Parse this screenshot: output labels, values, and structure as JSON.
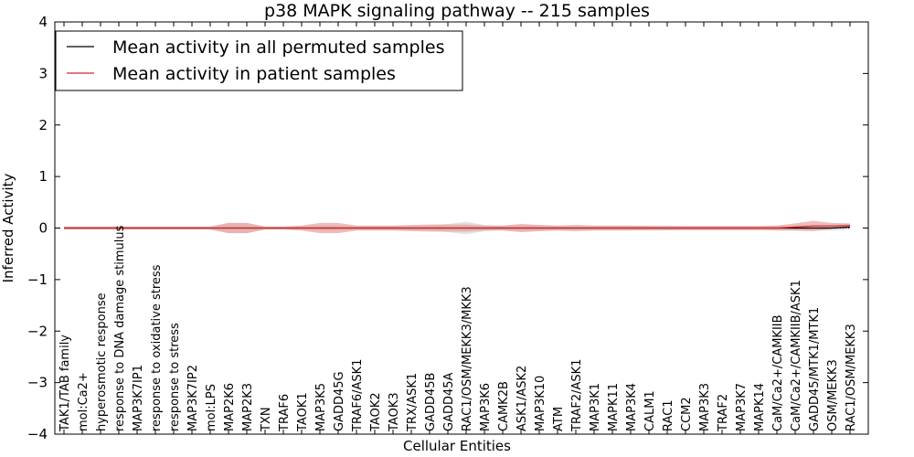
{
  "chart_data": {
    "type": "line",
    "title": "p38 MAPK signaling pathway -- 215 samples",
    "xlabel": "Cellular Entities",
    "ylabel": "Inferred Activity",
    "ylim": [
      -4,
      4
    ],
    "yticks": [
      "−4",
      "−3",
      "−2",
      "−1",
      "0",
      "1",
      "2",
      "3",
      "4"
    ],
    "categories": [
      "TAK1/TAB family",
      "mol:Ca2+",
      "hyperosmotic response",
      "response to DNA damage stimulus",
      "MAP3K7IP1",
      "response to oxidative stress",
      "response to stress",
      "MAP3K7IP2",
      "mol:LPS",
      "MAP2K6",
      "MAP2K3",
      "TXN",
      "TRAF6",
      "TAOK1",
      "MAP3K5",
      "GADD45G",
      "TRAF6/ASK1",
      "TAOK2",
      "TAOK3",
      "TRX/ASK1",
      "GADD45B",
      "GADD45A",
      "RAC1/OSM/MEKK3/MKK3",
      "MAP3K6",
      "CAMK2B",
      "ASK1/ASK2",
      "MAP3K10",
      "ATM",
      "TRAF2/ASK1",
      "MAP3K1",
      "MAPK11",
      "MAP3K4",
      "CALM1",
      "RAC1",
      "CCM2",
      "MAP3K3",
      "TRAF2",
      "MAP3K7",
      "MAPK14",
      "CaM/Ca2+/CAMKIIB",
      "CaM/Ca2+/CAMKIIB/ASK1",
      "GADD45/MTK1/MTK1",
      "OSM/MEKK3",
      "RAC1/OSM/MEKK3"
    ],
    "series": [
      {
        "name": "Mean activity in all permuted samples",
        "color": "#000000",
        "values": [
          0.0,
          0.0,
          0.0,
          0.0,
          0.0,
          0.0,
          0.0,
          0.0,
          0.0,
          0.0,
          0.0,
          0.0,
          0.0,
          0.0,
          0.0,
          0.0,
          0.0,
          0.0,
          0.0,
          0.0,
          0.0,
          0.0,
          0.0,
          0.0,
          0.0,
          0.0,
          0.0,
          0.0,
          0.0,
          0.0,
          0.0,
          0.0,
          0.0,
          0.0,
          0.0,
          0.0,
          0.0,
          0.0,
          0.0,
          0.0,
          0.0,
          0.0,
          0.0,
          0.02
        ],
        "band": [
          0.02,
          0.02,
          0.02,
          0.02,
          0.02,
          0.02,
          0.02,
          0.02,
          0.02,
          0.1,
          0.1,
          0.02,
          0.02,
          0.03,
          0.05,
          0.05,
          0.03,
          0.03,
          0.03,
          0.05,
          0.05,
          0.08,
          0.12,
          0.06,
          0.04,
          0.06,
          0.06,
          0.04,
          0.04,
          0.04,
          0.04,
          0.04,
          0.05,
          0.05,
          0.04,
          0.04,
          0.04,
          0.04,
          0.04,
          0.04,
          0.05,
          0.05,
          0.05,
          0.05
        ],
        "band_color": "#c8c8c8"
      },
      {
        "name": "Mean activity in patient samples",
        "color": "#d62728",
        "values": [
          0.0,
          0.0,
          0.0,
          0.0,
          0.0,
          0.0,
          0.0,
          0.0,
          0.0,
          0.0,
          0.0,
          0.0,
          0.0,
          0.0,
          0.0,
          0.0,
          0.0,
          0.0,
          0.0,
          0.0,
          0.0,
          0.0,
          0.0,
          0.0,
          0.0,
          0.0,
          0.0,
          0.0,
          0.0,
          0.0,
          0.0,
          0.0,
          0.0,
          0.0,
          0.0,
          0.0,
          0.0,
          0.0,
          0.0,
          0.0,
          0.02,
          0.04,
          0.04,
          0.05
        ],
        "band": [
          0.03,
          0.03,
          0.03,
          0.03,
          0.03,
          0.03,
          0.03,
          0.03,
          0.03,
          0.1,
          0.1,
          0.03,
          0.03,
          0.05,
          0.1,
          0.1,
          0.05,
          0.05,
          0.05,
          0.06,
          0.07,
          0.07,
          0.07,
          0.05,
          0.05,
          0.08,
          0.06,
          0.05,
          0.06,
          0.05,
          0.05,
          0.05,
          0.04,
          0.04,
          0.04,
          0.04,
          0.04,
          0.04,
          0.04,
          0.05,
          0.07,
          0.1,
          0.06,
          0.04
        ],
        "band_color": "#e8a0a0"
      }
    ],
    "legend": {
      "placement": "top-left"
    }
  }
}
